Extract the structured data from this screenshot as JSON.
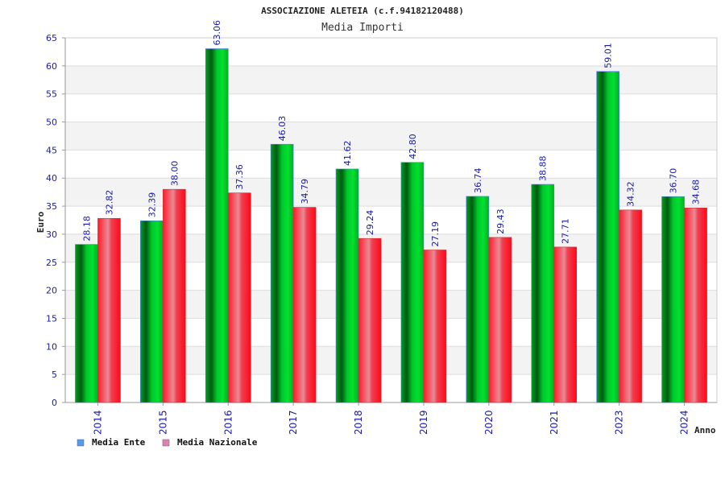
{
  "chart_data": {
    "type": "bar",
    "title": "ASSOCIAZIONE ALETEIA (c.f.94182120488)",
    "subtitle": "Media Importi",
    "xlabel": "Anno",
    "ylabel": "Euro",
    "categories": [
      "2014",
      "2015",
      "2016",
      "2017",
      "2018",
      "2019",
      "2020",
      "2021",
      "2023",
      "2024"
    ],
    "series": [
      {
        "name": "Media Ente",
        "color": "#00c020",
        "values": [
          28.18,
          32.39,
          63.06,
          46.03,
          41.62,
          42.8,
          36.74,
          38.88,
          59.01,
          36.7
        ],
        "labels": [
          "28.18",
          "32.39",
          "63.06",
          "46.03",
          "41.62",
          "42.80",
          "36.74",
          "38.88",
          "59.01",
          "36.70"
        ]
      },
      {
        "name": "Media Nazionale",
        "color": "#ff1020",
        "values": [
          32.82,
          38.0,
          37.36,
          34.79,
          29.24,
          27.19,
          29.43,
          27.71,
          34.32,
          34.68
        ],
        "labels": [
          "32.82",
          "38.00",
          "37.36",
          "34.79",
          "29.24",
          "27.19",
          "29.43",
          "27.71",
          "34.32",
          "34.68"
        ]
      }
    ],
    "ylim": [
      0,
      65
    ],
    "yticks": [
      "0",
      "5",
      "10",
      "15",
      "20",
      "25",
      "30",
      "35",
      "40",
      "45",
      "50",
      "55",
      "60",
      "65"
    ],
    "grid": true,
    "legend_position": "bottom-left",
    "legend_swatch_colors": [
      "#5599ee",
      "#e080b0"
    ]
  }
}
